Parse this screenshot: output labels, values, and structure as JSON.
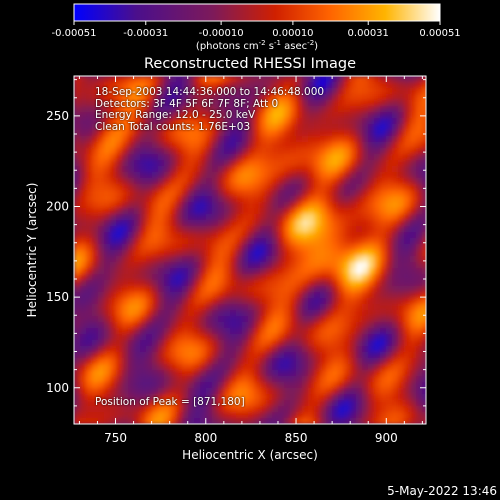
{
  "colorbar": {
    "tick_labels": [
      "-0.00051",
      "-0.00031",
      "-0.00010",
      "0.00010",
      "0.00031",
      "0.00051"
    ],
    "tick_values": [
      -0.00051,
      -0.00031,
      -0.0001,
      0.0001,
      0.00031,
      0.00051
    ],
    "range": [
      -0.00051,
      0.00051
    ],
    "units_parts": {
      "p1": "(photons cm",
      "sup1": "-2",
      "p2": " s",
      "sup2": "-1",
      "p3": " asec",
      "sup3": "-2",
      "p4": ")"
    },
    "colors": [
      "#0000ff",
      "#4b0f8c",
      "#7d1a5a",
      "#d02000",
      "#ff6400",
      "#ffb400",
      "#ffffff"
    ]
  },
  "chart_data": {
    "type": "heatmap",
    "title": "Reconstructed RHESSI Image",
    "xlabel": "Heliocentric X (arcsec)",
    "ylabel": "Heliocentric Y (arcsec)",
    "xlim": [
      727,
      922
    ],
    "ylim": [
      80,
      272
    ],
    "x_ticks": [
      750,
      800,
      850,
      900
    ],
    "y_ticks": [
      100,
      150,
      200,
      250
    ],
    "peak": {
      "x": 871,
      "y": 180
    },
    "colormap": [
      "#0000ff",
      "#4b0f8c",
      "#7d1a5a",
      "#d02000",
      "#ff6400",
      "#ffb400",
      "#ffffff"
    ]
  },
  "info": {
    "line1": "18-Sep-2003 14:44:36.000 to 14:46:48.000",
    "line2": "Detectors: 3F 4F 5F 6F 7F 8F; Att 0",
    "line3": "Energy Range: 12.0 - 25.0 keV",
    "line4": "Clean     Total counts: 1.76E+03",
    "peak_label": "Position of Peak = [871,180]"
  },
  "footer": {
    "timestamp": "5-May-2022 13:46"
  }
}
